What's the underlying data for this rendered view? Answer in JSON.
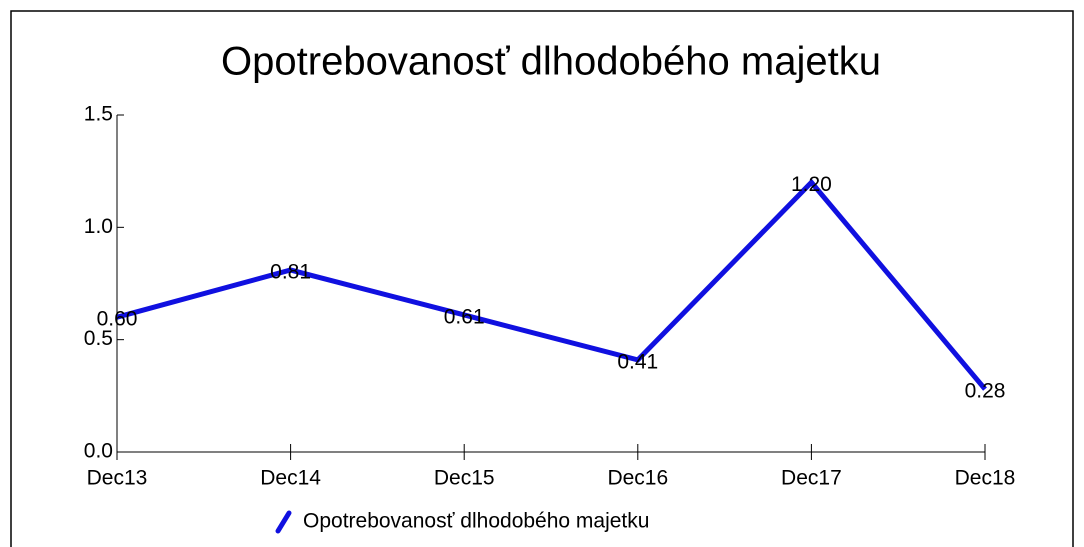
{
  "chart_data": {
    "type": "line",
    "title": "Opotrebovanosť dlhodobého majetku",
    "categories": [
      "Dec13",
      "Dec14",
      "Dec15",
      "Dec16",
      "Dec17",
      "Dec18"
    ],
    "series": [
      {
        "name": "Opotrebovanosť dlhodobého majetku",
        "color": "#1010e0",
        "values": [
          0.6,
          0.81,
          0.61,
          0.41,
          1.2,
          0.28
        ],
        "value_labels": [
          "0.60",
          "0.81",
          "0.61",
          "0.41",
          "1.20",
          "0.28"
        ]
      }
    ],
    "ylim": [
      0,
      1.5
    ],
    "yticks": [
      {
        "value": 0,
        "label": "0.0"
      },
      {
        "value": 0.5,
        "label": "0.5"
      },
      {
        "value": 1,
        "label": "1.0"
      },
      {
        "value": 1.5,
        "label": "1.5"
      }
    ],
    "legend": "bottom"
  }
}
